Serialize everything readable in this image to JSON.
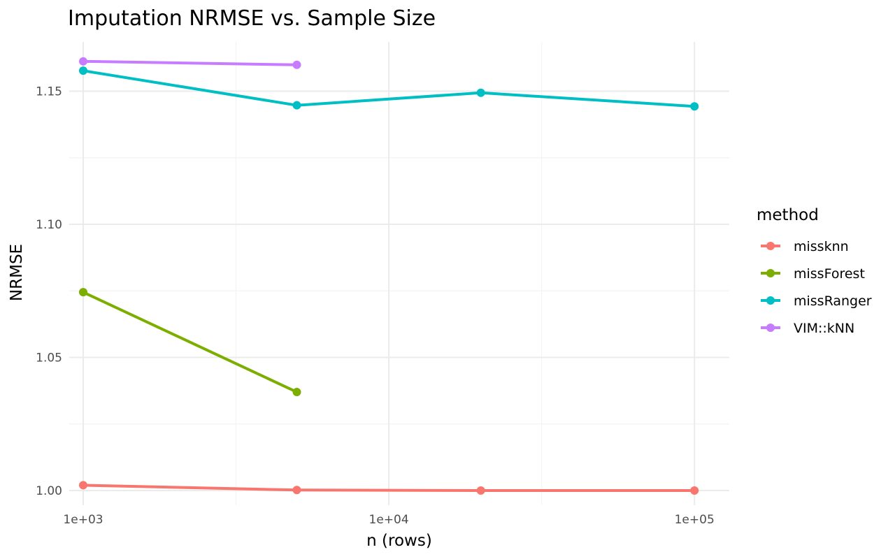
{
  "chart_data": {
    "type": "line",
    "title": "Imputation NRMSE vs. Sample Size",
    "xlabel": "n (rows)",
    "ylabel": "NRMSE",
    "x_scale": "log10",
    "xlim": [
      900,
      130000
    ],
    "ylim": [
      0.9945,
      1.1685
    ],
    "x_ticks": [
      {
        "value": 1000,
        "label": "1e+03"
      },
      {
        "value": 10000,
        "label": "1e+04"
      },
      {
        "value": 100000,
        "label": "1e+05"
      }
    ],
    "x_minor_ticks": [
      3162.28,
      31622.8
    ],
    "y_ticks": [
      {
        "value": 1.0,
        "label": "1.00"
      },
      {
        "value": 1.05,
        "label": "1.05"
      },
      {
        "value": 1.1,
        "label": "1.10"
      },
      {
        "value": 1.15,
        "label": "1.15"
      }
    ],
    "y_minor_ticks": [
      1.025,
      1.075,
      1.125
    ],
    "grid": true,
    "legend": {
      "title": "method",
      "placement": "right"
    },
    "series": [
      {
        "name": "missknn",
        "color": "#F8766D",
        "x": [
          1000,
          5000,
          20000,
          100000
        ],
        "y": [
          1.002,
          1.0002,
          1.0,
          1.0
        ]
      },
      {
        "name": "missForest",
        "color": "#7CAE00",
        "x": [
          1000,
          5000
        ],
        "y": [
          1.0745,
          1.037
        ]
      },
      {
        "name": "missRanger",
        "color": "#00BFC4",
        "x": [
          1000,
          5000,
          20000,
          100000
        ],
        "y": [
          1.1577,
          1.1447,
          1.1494,
          1.1443
        ]
      },
      {
        "name": "VIM::kNN",
        "color": "#C77CFF",
        "x": [
          1000,
          5000
        ],
        "y": [
          1.1612,
          1.1599
        ]
      }
    ]
  }
}
